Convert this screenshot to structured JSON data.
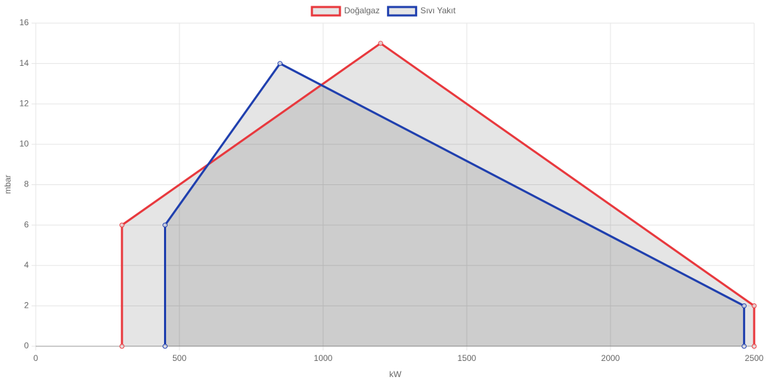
{
  "chart_data": {
    "type": "line",
    "x_label": "kW",
    "y_label": "mbar",
    "xlim": [
      0,
      2500
    ],
    "xticks": [
      0,
      500,
      1000,
      1500,
      2000,
      2500
    ],
    "ylim": [
      0,
      16
    ],
    "yticks": [
      0,
      2,
      4,
      6,
      8,
      10,
      12,
      14,
      16
    ],
    "grid": true,
    "legend": "top",
    "fill_color": "rgba(0,0,0,0.1)",
    "series": [
      {
        "name": "Doğalgaz",
        "color": "#e8383d",
        "x": [
          300,
          300,
          1200,
          2500,
          2500
        ],
        "values": [
          0,
          6,
          15,
          2,
          0
        ]
      },
      {
        "name": "Sıvı Yakıt",
        "color": "#1f3fae",
        "x": [
          450,
          450,
          850,
          2465,
          2465
        ],
        "values": [
          0,
          6,
          14,
          2,
          0
        ]
      }
    ]
  }
}
